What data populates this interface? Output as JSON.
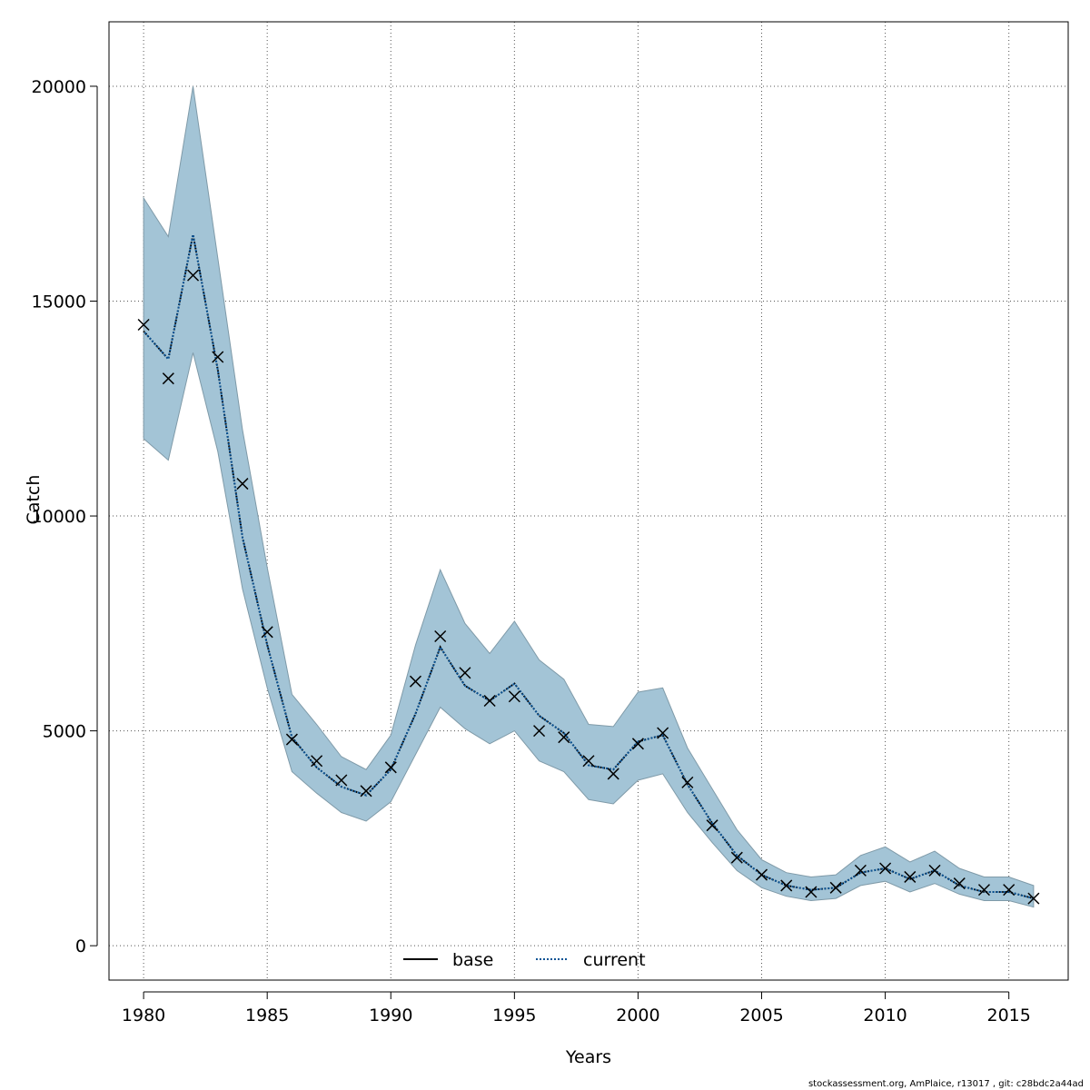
{
  "chart_data": {
    "type": "line",
    "xlabel": "Years",
    "ylabel": "Catch",
    "xlim": [
      1978.6,
      2017.4
    ],
    "ylim": [
      -800,
      21500
    ],
    "x_ticks": [
      1980,
      1985,
      1990,
      1995,
      2000,
      2005,
      2010,
      2015
    ],
    "y_ticks": [
      0,
      5000,
      10000,
      15000,
      20000
    ],
    "grid": true,
    "legend_position": "bottom-center",
    "x": [
      1980,
      1981,
      1982,
      1983,
      1984,
      1985,
      1986,
      1987,
      1988,
      1989,
      1990,
      1991,
      1992,
      1993,
      1994,
      1995,
      1996,
      1997,
      1998,
      1999,
      2000,
      2001,
      2002,
      2003,
      2004,
      2005,
      2006,
      2007,
      2008,
      2009,
      2010,
      2011,
      2012,
      2013,
      2014,
      2015,
      2016
    ],
    "observed": [
      14450,
      13200,
      15600,
      13700,
      10750,
      7300,
      4800,
      4300,
      3850,
      3600,
      4150,
      6150,
      7200,
      6350,
      5700,
      5800,
      5000,
      4850,
      4300,
      4000,
      4700,
      4950,
      3800,
      2800,
      2050,
      1650,
      1400,
      1250,
      1350,
      1750,
      1800,
      1600,
      1750,
      1450,
      1300,
      1300,
      1100
    ],
    "series": [
      {
        "name": "base",
        "style": "solid",
        "color": "#000000",
        "values": [
          14300,
          13650,
          16550,
          13400,
          9500,
          7000,
          4850,
          4150,
          3700,
          3500,
          4100,
          5400,
          6950,
          6050,
          5700,
          6100,
          5350,
          4950,
          4200,
          4100,
          4750,
          4900,
          3750,
          2850,
          2100,
          1650,
          1400,
          1300,
          1350,
          1700,
          1800,
          1550,
          1750,
          1400,
          1250,
          1250,
          1100
        ]
      },
      {
        "name": "current",
        "style": "dotted",
        "color": "#0b5394",
        "values": [
          14300,
          13650,
          16550,
          13400,
          9500,
          7000,
          4850,
          4150,
          3700,
          3500,
          4100,
          5400,
          6950,
          6050,
          5700,
          6100,
          5350,
          4950,
          4200,
          4100,
          4750,
          4900,
          3750,
          2850,
          2100,
          1650,
          1400,
          1300,
          1350,
          1700,
          1800,
          1550,
          1750,
          1400,
          1250,
          1250,
          1100
        ]
      }
    ],
    "band": {
      "color": "#a3c4d6",
      "upper": [
        17400,
        16500,
        20000,
        16000,
        12000,
        8800,
        5850,
        5150,
        4400,
        4100,
        4900,
        7000,
        8750,
        7500,
        6800,
        7550,
        6650,
        6200,
        5150,
        5100,
        5900,
        6000,
        4600,
        3650,
        2700,
        2000,
        1700,
        1600,
        1650,
        2100,
        2300,
        1950,
        2200,
        1800,
        1600,
        1600,
        1400
      ],
      "lower": [
        11800,
        11300,
        13800,
        11500,
        8300,
        6000,
        4050,
        3550,
        3100,
        2900,
        3350,
        4450,
        5550,
        5050,
        4700,
        5000,
        4300,
        4050,
        3400,
        3300,
        3850,
        4000,
        3100,
        2400,
        1750,
        1350,
        1150,
        1050,
        1100,
        1400,
        1500,
        1250,
        1450,
        1200,
        1050,
        1050,
        900
      ]
    }
  },
  "footer": {
    "credit": "stockassessment.org, AmPlaice, r13017 , git: c28bdc2a44ad"
  }
}
